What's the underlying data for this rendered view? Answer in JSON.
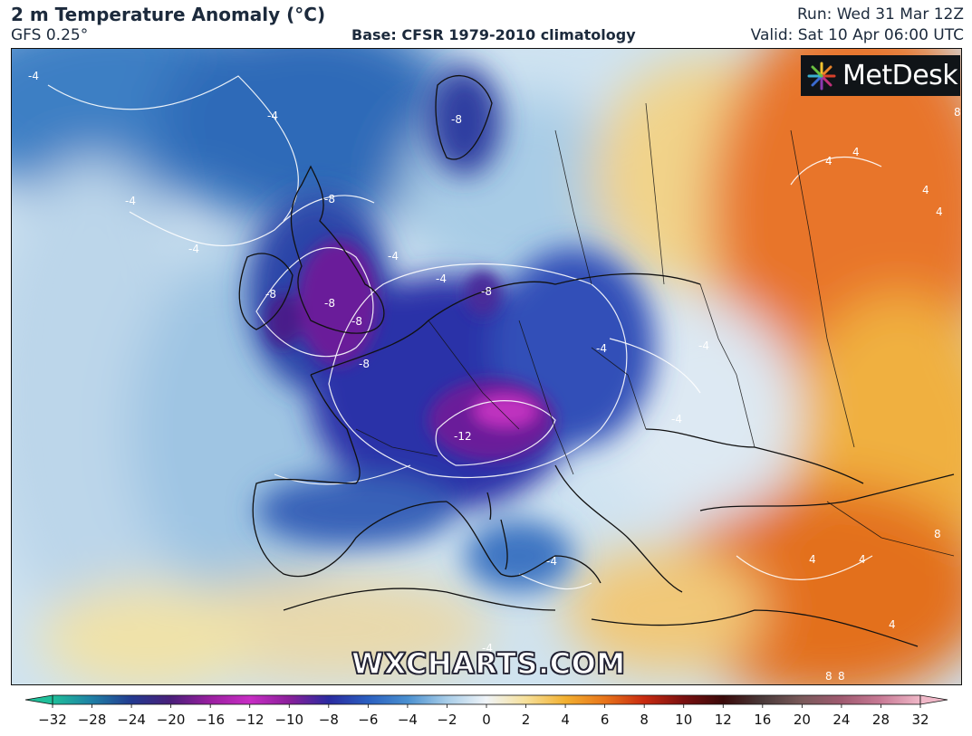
{
  "header": {
    "title": "2 m Temperature Anomaly (°C)",
    "model": "GFS 0.25°",
    "base": "Base: CFSR 1979-2010 climatology",
    "run": "Run: Wed 31 Mar 12Z",
    "valid": "Valid: Sat 10 Apr 06:00 UTC"
  },
  "branding": {
    "logo": "MetDesk",
    "logo_icon": "metdesk-burst-icon",
    "watermark": "WXCHARTS.COM"
  },
  "map": {
    "region": "Europe",
    "contour_labels": [
      "-4",
      "-4",
      "-4",
      "-4",
      "-8",
      "-8",
      "-8",
      "-8",
      "-8",
      "-8",
      "-8",
      "-4",
      "-4",
      "-4",
      "-12",
      "-4",
      "-4",
      "4",
      "4",
      "4",
      "4",
      "4",
      "4",
      "8",
      "8",
      "8",
      "8",
      "-4",
      "-4",
      "4"
    ]
  },
  "colorbar": {
    "ticks": [
      "−32",
      "−28",
      "−24",
      "−20",
      "−16",
      "−12",
      "−10",
      "−8",
      "−6",
      "−4",
      "−2",
      "0",
      "2",
      "4",
      "6",
      "8",
      "10",
      "12",
      "16",
      "20",
      "24",
      "28",
      "32"
    ],
    "colors": {
      "-32": "#1fbf9a",
      "-28": "#1f7fa5",
      "-24": "#233a90",
      "-20": "#4a1f7a",
      "-16": "#9a1fa0",
      "-12": "#c82dc4",
      "-10": "#8a1f9a",
      "-8": "#2a2aa0",
      "-6": "#2a5fc0",
      "-4": "#4a90d0",
      "-2": "#a8cde8",
      "0": "#f0f4f8",
      "2": "#f6e09a",
      "4": "#f2b030",
      "6": "#e8741a",
      "8": "#c82a10",
      "10": "#7a1010",
      "12": "#3a0a0a",
      "16": "#4a3a3a",
      "20": "#7a5a5a",
      "24": "#a05a70",
      "28": "#c87a95",
      "32": "#f0b8c8"
    }
  }
}
